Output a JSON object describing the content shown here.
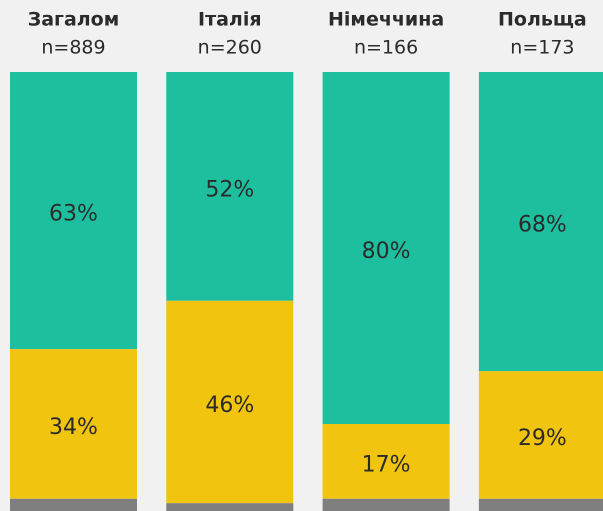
{
  "chart_data": {
    "type": "bar",
    "stacked": true,
    "categories": [
      "Загалом",
      "Італія",
      "Німеччина",
      "Польща"
    ],
    "category_notes": [
      "n=889",
      "n=260",
      "n=166",
      "n=173"
    ],
    "ylim": [
      0,
      100
    ],
    "series": [
      {
        "color": "#1dbf9e",
        "values": [
          63,
          52,
          80,
          68
        ],
        "value_labels": [
          "63%",
          "52%",
          "80%",
          "68%"
        ]
      },
      {
        "color": "#f1c40f",
        "values": [
          34,
          46,
          17,
          29
        ],
        "value_labels": [
          "34%",
          "46%",
          "17%",
          "29%"
        ]
      },
      {
        "color": "#7f7f7f",
        "values": [
          3,
          2,
          3,
          3
        ]
      }
    ]
  }
}
